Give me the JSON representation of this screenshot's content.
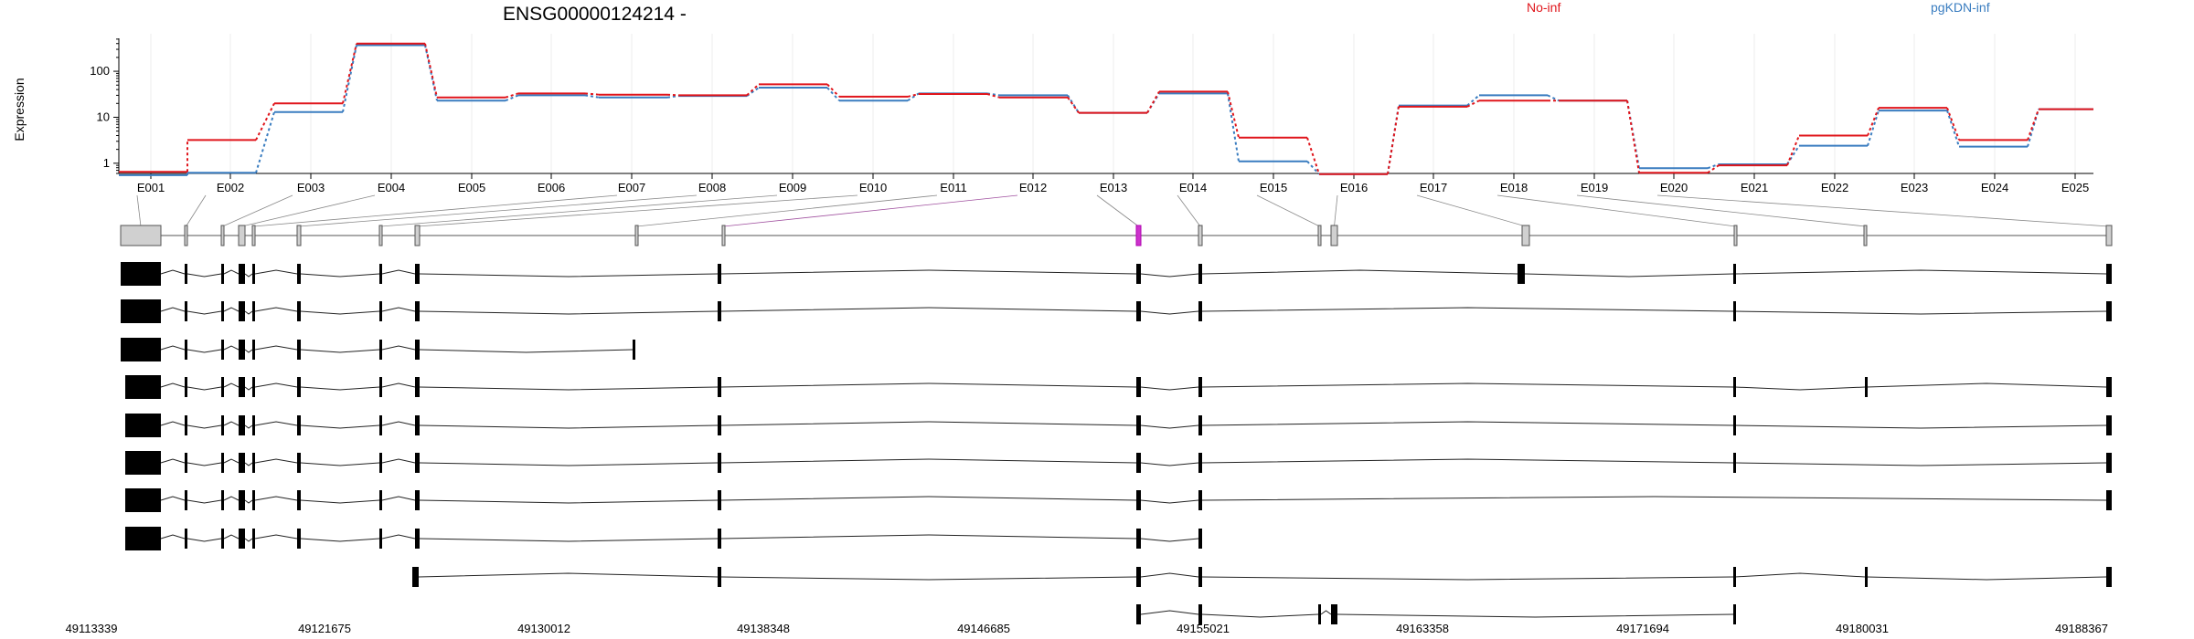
{
  "chart_data": {
    "type": "line",
    "title": "ENSG00000124214 -",
    "ylabel": "Expression",
    "yscale": "log",
    "ylim": [
      0.6,
      520
    ],
    "yticks": [
      "1",
      "10",
      "100"
    ],
    "grid": true,
    "legend_placement": "top-right",
    "categories": [
      "E001",
      "E002",
      "E003",
      "E004",
      "E005",
      "E006",
      "E007",
      "E008",
      "E009",
      "E010",
      "E011",
      "E012",
      "E013",
      "E014",
      "E015",
      "E016",
      "E017",
      "E018",
      "E019",
      "E020",
      "E021",
      "E022",
      "E023",
      "E024",
      "E025"
    ],
    "series": [
      {
        "name": "No-inf",
        "color": "#e0151b",
        "values": [
          0.65,
          3.2,
          20,
          400,
          27,
          33,
          31,
          30,
          52,
          28,
          32,
          27,
          12.5,
          36,
          3.6,
          0.58,
          17,
          23,
          23,
          0.62,
          0.9,
          4,
          16,
          3.2,
          15
        ]
      },
      {
        "name": "pgKDN-inf",
        "color": "#3a7dc0",
        "values": [
          0.55,
          0.62,
          13,
          370,
          23,
          30,
          27,
          29,
          44,
          23,
          33,
          30,
          12.5,
          33,
          1.1,
          0.58,
          18,
          30,
          23,
          0.78,
          0.95,
          2.4,
          14,
          2.3,
          15
        ]
      }
    ],
    "gene_model": {
      "genomic_ticks": [
        "49113339",
        "49121675",
        "49130012",
        "49138348",
        "49146685",
        "49155021",
        "49163358",
        "49171694",
        "49180031",
        "49188367"
      ],
      "highlight_color": "#cc33cc",
      "highlighted_exon": "E014",
      "transcript_count": 10
    }
  }
}
